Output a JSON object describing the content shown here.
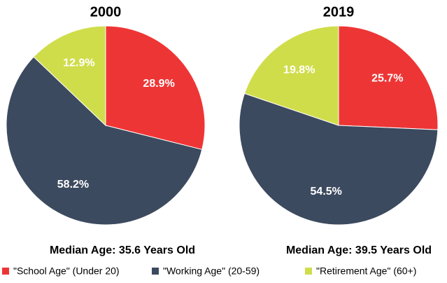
{
  "chart_data": [
    {
      "type": "pie",
      "title": "2000",
      "subtitle": "Median Age: 35.6 Years Old",
      "categories": [
        "\"School Age\" (Under 20)",
        "\"Working Age\" (20-59)",
        "\"Retirement Age\" (60+)"
      ],
      "values": [
        28.9,
        58.2,
        12.9
      ],
      "value_labels": [
        "28.9%",
        "58.2%",
        "12.9%"
      ],
      "colors": [
        "#ee3535",
        "#3c4a5f",
        "#d0dd4b"
      ]
    },
    {
      "type": "pie",
      "title": "2019",
      "subtitle": "Median Age: 39.5 Years Old",
      "categories": [
        "\"School Age\" (Under 20)",
        "\"Working Age\" (20-59)",
        "\"Retirement Age\" (60+)"
      ],
      "values": [
        25.7,
        54.5,
        19.8
      ],
      "value_labels": [
        "25.7%",
        "54.5%",
        "19.8%"
      ],
      "colors": [
        "#ee3535",
        "#3c4a5f",
        "#d0dd4b"
      ]
    }
  ]
}
